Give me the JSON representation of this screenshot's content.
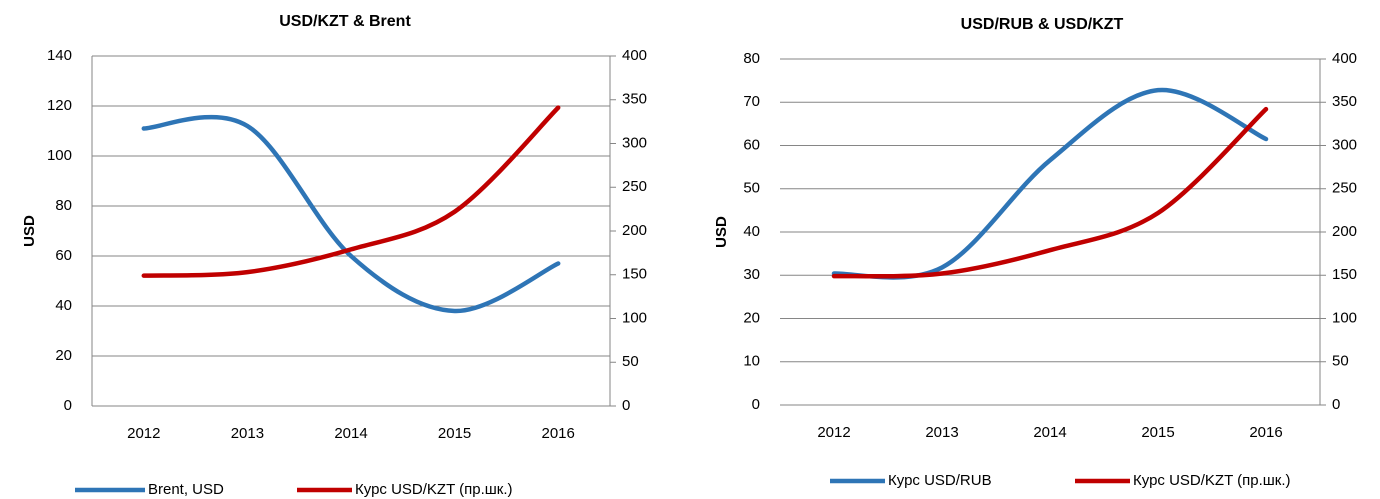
{
  "chart_data": [
    {
      "type": "line",
      "title": "USD/KZT & Brent",
      "y_label": "USD",
      "categories": [
        "2012",
        "2013",
        "2014",
        "2015",
        "2016"
      ],
      "series": [
        {
          "name": "Brent, USD",
          "color": "#2e75b6",
          "values": [
            111,
            112,
            60,
            38,
            57
          ]
        },
        {
          "name": "Курс USD/KZT (пр.шк.)",
          "color": "#c00000",
          "axis": "y2",
          "values": [
            149,
            153,
            179,
            222,
            341
          ]
        }
      ],
      "ylim": [
        0,
        140
      ],
      "yticks": [
        0,
        20,
        40,
        60,
        80,
        100,
        120,
        140
      ],
      "y2lim": [
        0,
        400
      ],
      "y2ticks": [
        0,
        50,
        100,
        150,
        200,
        250,
        300,
        350,
        400
      ],
      "grid": true
    },
    {
      "type": "line",
      "title": "USD/RUB & USD/KZT",
      "y_label": "USD",
      "categories": [
        "2012",
        "2013",
        "2014",
        "2015",
        "2016"
      ],
      "series": [
        {
          "name": "Курс USD/RUB",
          "color": "#2e75b6",
          "values": [
            30.4,
            31.8,
            56.6,
            72.8,
            61.5
          ]
        },
        {
          "name": "Курс USD/KZT (пр.шк.)",
          "color": "#c00000",
          "axis": "y2",
          "values": [
            149,
            152,
            179,
            222,
            342
          ]
        }
      ],
      "ylim": [
        0,
        80
      ],
      "yticks": [
        0,
        10,
        20,
        30,
        40,
        50,
        60,
        70,
        80
      ],
      "y2lim": [
        0,
        400
      ],
      "y2ticks": [
        0,
        50,
        100,
        150,
        200,
        250,
        300,
        350,
        400
      ],
      "grid": true
    }
  ]
}
